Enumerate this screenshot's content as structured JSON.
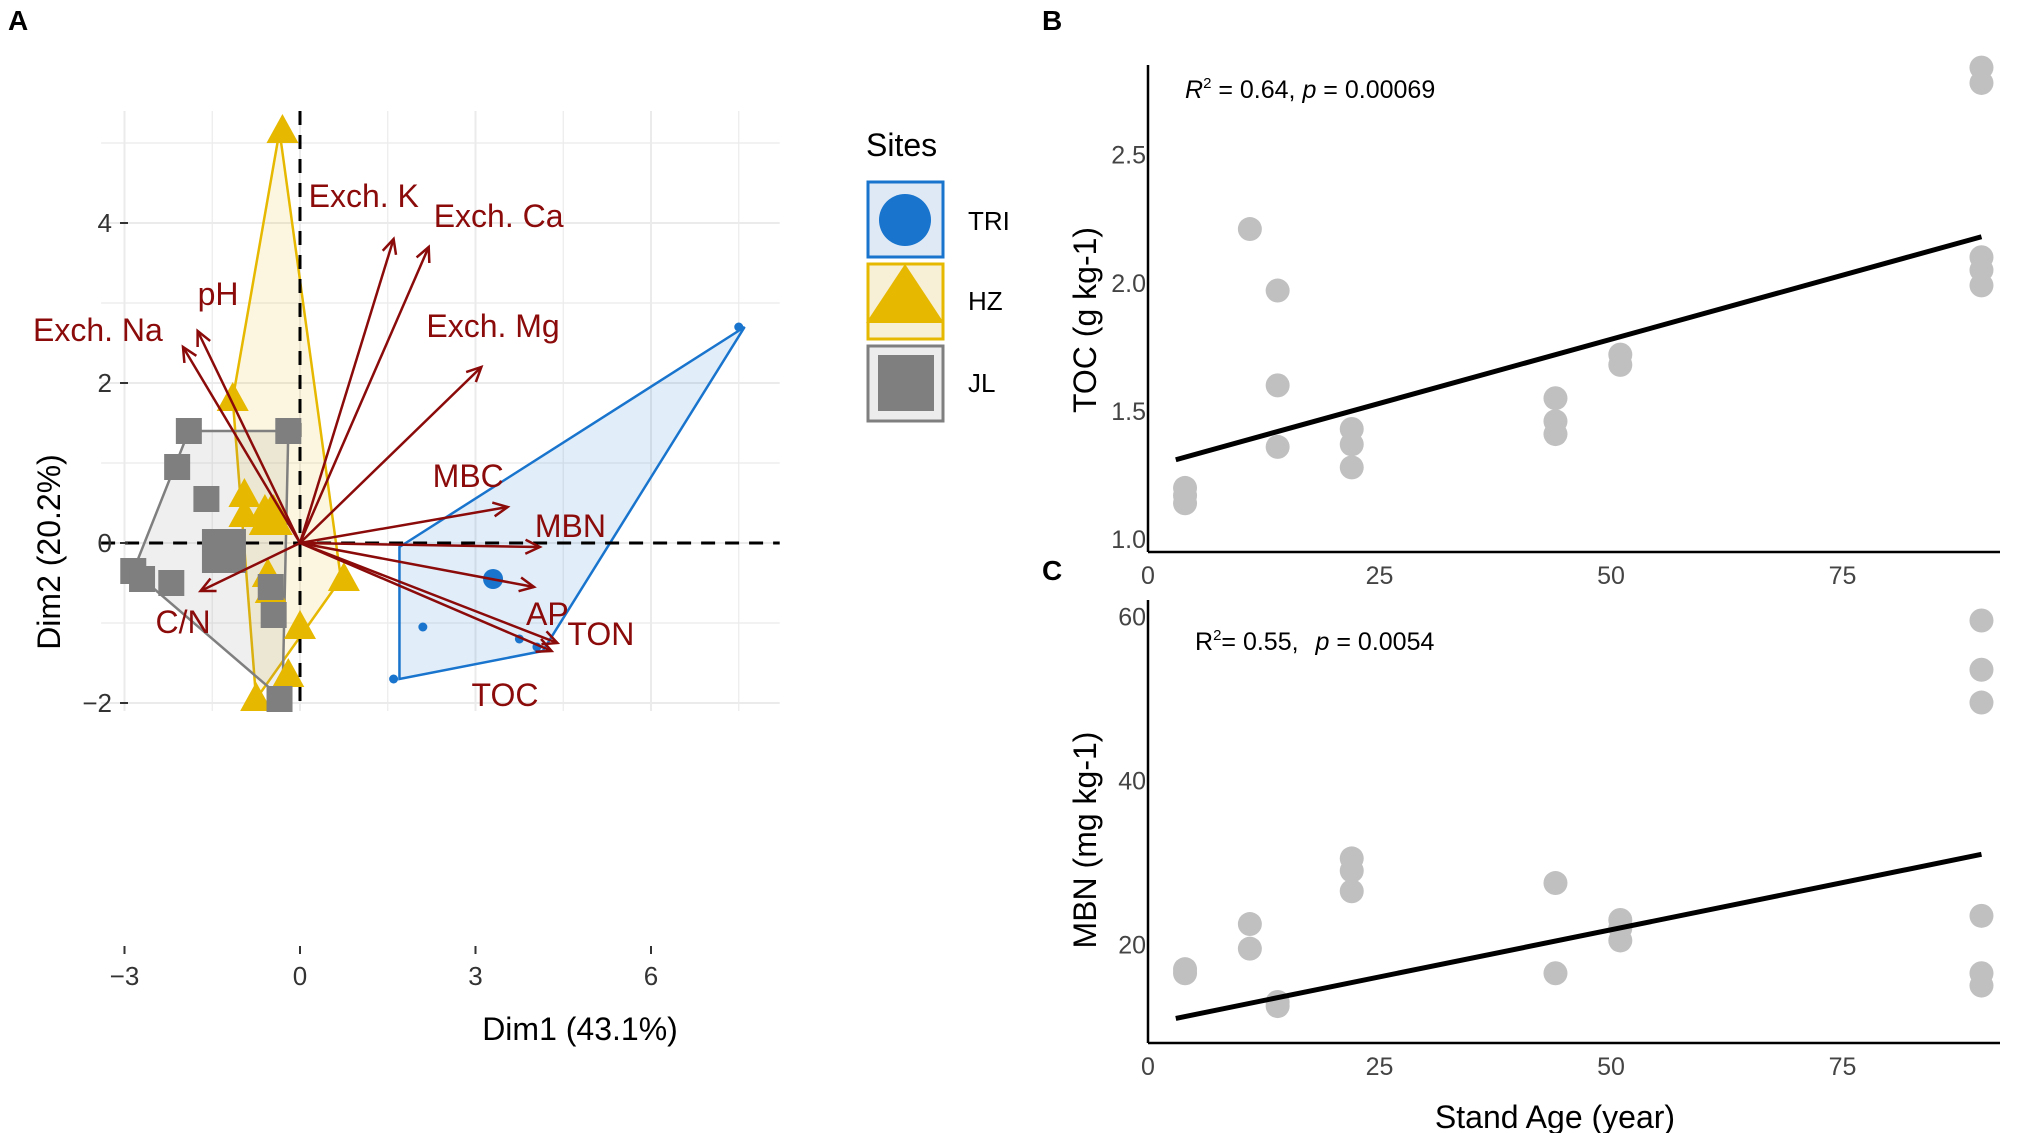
{
  "panel_labels": {
    "a": "A",
    "b": "B",
    "c": "C"
  },
  "colors": {
    "TRI": "#1874cd",
    "HZ": "#e6b800",
    "JL": "#7f7f7f",
    "arrow": "#8b0a0a",
    "scatter": "#c0c0c0",
    "fit": "#000000"
  },
  "chart_data": [
    {
      "id": "A",
      "type": "scatter",
      "title": "",
      "xlabel": "Dim1 (43.1%)",
      "ylabel": "Dim2 (20.2%)",
      "xlim": [
        -3.4,
        8.2
      ],
      "ylim": [
        -2.1,
        5.4
      ],
      "xticks": [
        -3,
        0,
        3,
        6
      ],
      "xtick_labels": [
        "−3",
        "0",
        "3",
        "6"
      ],
      "yticks": [
        -2,
        0,
        2,
        4
      ],
      "ytick_labels": [
        "−2",
        "0",
        "2",
        "4"
      ],
      "legend": {
        "title": "Sites",
        "position": "top-right",
        "entries": [
          "TRI",
          "HZ",
          "JL"
        ]
      },
      "series": [
        {
          "name": "TRI",
          "marker": "circle",
          "hull": [
            [
              7.6,
              2.7
            ],
            [
              1.7,
              -0.05
            ],
            [
              1.7,
              -1.7
            ],
            [
              4.15,
              -1.35
            ]
          ],
          "points": [
            [
              7.5,
              2.7
            ],
            [
              1.6,
              -1.7
            ],
            [
              2.1,
              -1.05
            ],
            [
              3.75,
              -1.2
            ],
            [
              4.05,
              -1.3
            ],
            [
              3.3,
              -0.45
            ]
          ],
          "centroid": [
            3.3,
            -0.45
          ]
        },
        {
          "name": "HZ",
          "marker": "triangle",
          "hull": [
            [
              -0.35,
              5.15
            ],
            [
              0.7,
              -0.45
            ],
            [
              -0.75,
              -1.95
            ],
            [
              -1.15,
              1.8
            ]
          ],
          "points": [
            [
              -0.3,
              5.15
            ],
            [
              -1.15,
              1.8
            ],
            [
              -0.95,
              0.6
            ],
            [
              -0.95,
              0.35
            ],
            [
              -0.6,
              0.4
            ],
            [
              -0.45,
              0.4
            ],
            [
              -0.55,
              -0.4
            ],
            [
              -0.5,
              -0.6
            ],
            [
              0.0,
              -1.05
            ],
            [
              -0.2,
              -1.65
            ],
            [
              -0.75,
              -1.95
            ],
            [
              0.75,
              -0.45
            ]
          ],
          "centroid": [
            -0.5,
            0.3
          ]
        },
        {
          "name": "JL",
          "marker": "square",
          "hull": [
            [
              -1.9,
              1.4
            ],
            [
              -0.2,
              1.4
            ],
            [
              -0.3,
              -1.95
            ],
            [
              -2.85,
              -0.35
            ]
          ],
          "points": [
            [
              -1.9,
              1.4
            ],
            [
              -0.2,
              1.4
            ],
            [
              -2.1,
              0.95
            ],
            [
              -1.6,
              0.55
            ],
            [
              -1.35,
              0.0
            ],
            [
              -2.85,
              -0.35
            ],
            [
              -2.7,
              -0.45
            ],
            [
              -2.2,
              -0.5
            ],
            [
              -0.5,
              -0.55
            ],
            [
              -0.45,
              -0.9
            ],
            [
              -0.35,
              -1.95
            ]
          ],
          "centroid": [
            -1.3,
            -0.1
          ]
        }
      ],
      "arrows": [
        {
          "label": "Exch. K",
          "x": 1.6,
          "y": 3.8
        },
        {
          "label": "Exch. Ca",
          "x": 2.2,
          "y": 3.7
        },
        {
          "label": "pH",
          "x": -1.75,
          "y": 2.65
        },
        {
          "label": "Exch. Na",
          "x": -2.0,
          "y": 2.45
        },
        {
          "label": "Exch. Mg",
          "x": 3.1,
          "y": 2.2
        },
        {
          "label": "MBC",
          "x": 3.55,
          "y": 0.45
        },
        {
          "label": "MBN",
          "x": 4.1,
          "y": -0.05
        },
        {
          "label": "AP",
          "x": 4.0,
          "y": -0.55
        },
        {
          "label": "TON",
          "x": 4.4,
          "y": -1.25
        },
        {
          "label": "TOC",
          "x": 4.3,
          "y": -1.35
        },
        {
          "label": "C/N",
          "x": -1.7,
          "y": -0.6
        }
      ]
    },
    {
      "id": "B",
      "type": "scatter",
      "xlabel": "",
      "ylabel": "TOC (g kg-1)",
      "xlim": [
        0,
        92
      ],
      "ylim": [
        0.95,
        2.85
      ],
      "xticks": [
        0,
        25,
        50,
        75
      ],
      "xtick_labels": [
        "0",
        "25",
        "50",
        "75"
      ],
      "yticks": [
        1.0,
        1.5,
        2.0,
        2.5
      ],
      "ytick_labels": [
        "1.0",
        "1.5",
        "2.0",
        "2.5"
      ],
      "annotation": {
        "r2_label": "R",
        "r2_sup": "2",
        "r2_value": " = 0.64, ",
        "p_label": "p",
        "p_value": " = 0.00069"
      },
      "points": [
        [
          4,
          1.2
        ],
        [
          4,
          1.17
        ],
        [
          4,
          1.14
        ],
        [
          11,
          2.21
        ],
        [
          14,
          1.97
        ],
        [
          14,
          1.6
        ],
        [
          14,
          1.36
        ],
        [
          22,
          1.43
        ],
        [
          22,
          1.37
        ],
        [
          22,
          1.28
        ],
        [
          44,
          1.55
        ],
        [
          44,
          1.46
        ],
        [
          44,
          1.41
        ],
        [
          51,
          1.72
        ],
        [
          51,
          1.68
        ],
        [
          90,
          2.84
        ],
        [
          90,
          2.78
        ],
        [
          90,
          2.1
        ],
        [
          90,
          2.05
        ],
        [
          90,
          1.99
        ]
      ],
      "fit": {
        "x": [
          3,
          90
        ],
        "y": [
          1.31,
          2.18
        ]
      }
    },
    {
      "id": "C",
      "type": "scatter",
      "xlabel": "Stand Age (year)",
      "ylabel": "MBN (mg kg-1)",
      "xlim": [
        0,
        92
      ],
      "ylim": [
        8,
        62
      ],
      "xticks": [
        0,
        25,
        50,
        75
      ],
      "xtick_labels": [
        "0",
        "25",
        "50",
        "75"
      ],
      "yticks": [
        20,
        40,
        60
      ],
      "ytick_labels": [
        "20",
        "40",
        "60"
      ],
      "annotation": {
        "r2_label": "R",
        "r2_sup": "2",
        "r2_value": "= 0.55, ",
        "p_label": "p",
        "p_value": " = 0.0054"
      },
      "points": [
        [
          4,
          17.0
        ],
        [
          4,
          16.5
        ],
        [
          11,
          22.5
        ],
        [
          11,
          19.5
        ],
        [
          14,
          13.0
        ],
        [
          14,
          12.5
        ],
        [
          22,
          30.5
        ],
        [
          22,
          29.0
        ],
        [
          22,
          26.5
        ],
        [
          44,
          27.5
        ],
        [
          44,
          16.5
        ],
        [
          51,
          23.0
        ],
        [
          51,
          22.0
        ],
        [
          51,
          20.5
        ],
        [
          90,
          59.5
        ],
        [
          90,
          53.5
        ],
        [
          90,
          49.5
        ],
        [
          90,
          23.5
        ],
        [
          90,
          16.5
        ],
        [
          90,
          15.0
        ]
      ],
      "fit": {
        "x": [
          3,
          90
        ],
        "y": [
          11.0,
          31.0
        ]
      }
    }
  ]
}
